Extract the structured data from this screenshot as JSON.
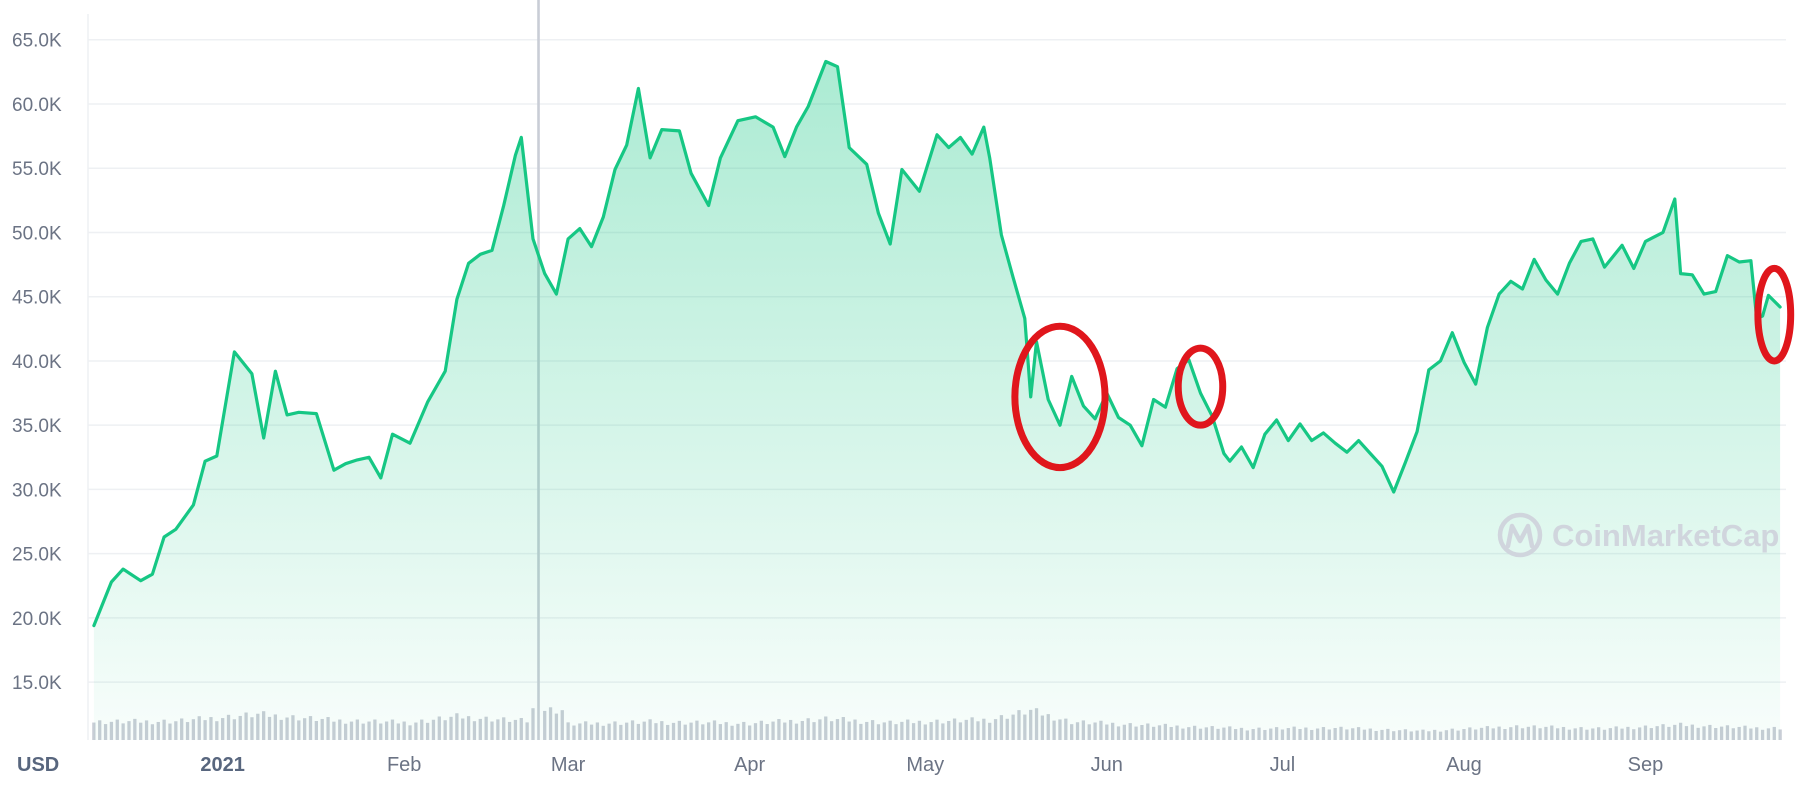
{
  "chart_data": {
    "type": "area",
    "currency_label": "USD",
    "watermark": "CoinMarketCap",
    "y_ticks": [
      "65.0K",
      "60.0K",
      "55.0K",
      "50.0K",
      "45.0K",
      "40.0K",
      "35.0K",
      "30.0K",
      "25.0K",
      "20.0K",
      "15.0K"
    ],
    "x_ticks": [
      {
        "label": "2021",
        "date": "2021-01-01",
        "bold": true
      },
      {
        "label": "Feb",
        "date": "2021-02-01",
        "bold": false
      },
      {
        "label": "Mar",
        "date": "2021-03-01",
        "bold": false
      },
      {
        "label": "Apr",
        "date": "2021-04-01",
        "bold": false
      },
      {
        "label": "May",
        "date": "2021-05-01",
        "bold": false
      },
      {
        "label": "Jun",
        "date": "2021-06-01",
        "bold": false
      },
      {
        "label": "Jul",
        "date": "2021-07-01",
        "bold": false
      },
      {
        "label": "Aug",
        "date": "2021-08-01",
        "bold": false
      },
      {
        "label": "Sep",
        "date": "2021-09-01",
        "bold": false
      }
    ],
    "ylim": [
      10500,
      67000
    ],
    "xlim": [
      "2020-12-09",
      "2021-09-25"
    ],
    "grid": true,
    "line_color": "#16c784",
    "fill_color": "#16c784",
    "volume_color": "#c9cdd6",
    "annotation_color": "#e0161c",
    "series": [
      {
        "type": "line",
        "x": [
          "2020-12-10",
          "2020-12-13",
          "2020-12-15",
          "2020-12-18",
          "2020-12-20",
          "2020-12-22",
          "2020-12-24",
          "2020-12-27",
          "2020-12-29",
          "2020-12-31",
          "2021-01-03",
          "2021-01-06",
          "2021-01-08",
          "2021-01-10",
          "2021-01-12",
          "2021-01-14",
          "2021-01-17",
          "2021-01-20",
          "2021-01-22",
          "2021-01-24",
          "2021-01-26",
          "2021-01-28",
          "2021-01-30",
          "2021-02-02",
          "2021-02-05",
          "2021-02-08",
          "2021-02-10",
          "2021-02-12",
          "2021-02-14",
          "2021-02-16",
          "2021-02-18",
          "2021-02-20",
          "2021-02-21",
          "2021-02-23",
          "2021-02-25",
          "2021-02-27",
          "2021-03-01",
          "2021-03-03",
          "2021-03-05",
          "2021-03-07",
          "2021-03-09",
          "2021-03-11",
          "2021-03-13",
          "2021-03-15",
          "2021-03-17",
          "2021-03-20",
          "2021-03-22",
          "2021-03-25",
          "2021-03-27",
          "2021-03-30",
          "2021-04-02",
          "2021-04-05",
          "2021-04-07",
          "2021-04-09",
          "2021-04-11",
          "2021-04-14",
          "2021-04-16",
          "2021-04-18",
          "2021-04-21",
          "2021-04-23",
          "2021-04-25",
          "2021-04-27",
          "2021-04-30",
          "2021-05-03",
          "2021-05-05",
          "2021-05-07",
          "2021-05-09",
          "2021-05-11",
          "2021-05-12",
          "2021-05-14",
          "2021-05-16",
          "2021-05-18",
          "2021-05-19",
          "2021-05-20",
          "2021-05-22",
          "2021-05-24",
          "2021-05-26",
          "2021-05-28",
          "2021-05-30",
          "2021-06-01",
          "2021-06-03",
          "2021-06-05",
          "2021-06-07",
          "2021-06-09",
          "2021-06-11",
          "2021-06-13",
          "2021-06-15",
          "2021-06-17",
          "2021-06-19",
          "2021-06-21",
          "2021-06-22",
          "2021-06-24",
          "2021-06-26",
          "2021-06-28",
          "2021-06-30",
          "2021-07-02",
          "2021-07-04",
          "2021-07-06",
          "2021-07-08",
          "2021-07-10",
          "2021-07-12",
          "2021-07-14",
          "2021-07-16",
          "2021-07-18",
          "2021-07-20",
          "2021-07-22",
          "2021-07-24",
          "2021-07-26",
          "2021-07-28",
          "2021-07-30",
          "2021-08-01",
          "2021-08-03",
          "2021-08-05",
          "2021-08-07",
          "2021-08-09",
          "2021-08-11",
          "2021-08-13",
          "2021-08-15",
          "2021-08-17",
          "2021-08-19",
          "2021-08-21",
          "2021-08-23",
          "2021-08-25",
          "2021-08-28",
          "2021-08-30",
          "2021-09-01",
          "2021-09-04",
          "2021-09-06",
          "2021-09-07",
          "2021-09-09",
          "2021-09-11",
          "2021-09-13",
          "2021-09-15",
          "2021-09-17",
          "2021-09-19",
          "2021-09-20",
          "2021-09-21",
          "2021-09-22",
          "2021-09-24"
        ],
        "y": [
          19400,
          22800,
          23800,
          22900,
          23400,
          26300,
          26900,
          28800,
          32200,
          32600,
          40700,
          39000,
          34000,
          39200,
          35800,
          36000,
          35900,
          31500,
          32000,
          32300,
          32500,
          30900,
          34300,
          33600,
          36800,
          39200,
          44800,
          47600,
          48300,
          48600,
          52100,
          56000,
          57400,
          49500,
          46800,
          45200,
          49500,
          50300,
          48900,
          51200,
          54900,
          56800,
          61200,
          55800,
          58000,
          57900,
          54600,
          52100,
          55800,
          58700,
          59000,
          58200,
          55900,
          58200,
          59800,
          63300,
          62900,
          56600,
          55300,
          51500,
          49100,
          54900,
          53200,
          57600,
          56600,
          57400,
          56100,
          58200,
          55800,
          49800,
          46500,
          43300,
          37200,
          41500,
          37000,
          35000,
          38800,
          36500,
          35500,
          37500,
          35600,
          35000,
          33400,
          37000,
          36400,
          39400,
          40100,
          37500,
          35700,
          32800,
          32200,
          33300,
          31700,
          34300,
          35400,
          33800,
          35100,
          33800,
          34400,
          33600,
          32900,
          33800,
          32800,
          31800,
          29800,
          32100,
          34500,
          39300,
          40000,
          42200,
          39900,
          38200,
          42600,
          45200,
          46200,
          45600,
          47900,
          46300,
          45200,
          47600,
          49300,
          49500,
          47300,
          49000,
          47200,
          49300,
          50000,
          52600,
          46800,
          46700,
          45200,
          45400,
          48200,
          47700,
          47800,
          43300,
          43500,
          45100,
          44200
        ]
      }
    ],
    "volume_ticks": {
      "dates": [
        "2020-12-10",
        "2020-12-24",
        "2021-01-07",
        "2021-01-20",
        "2021-02-02",
        "2021-02-10",
        "2021-02-22",
        "2021-02-24",
        "2021-03-01",
        "2021-03-15",
        "2021-04-01",
        "2021-04-14",
        "2021-04-25",
        "2021-05-12",
        "2021-05-19",
        "2021-05-26",
        "2021-06-10",
        "2021-06-25",
        "2021-07-10",
        "2021-07-25",
        "2021-08-10",
        "2021-08-25",
        "2021-09-07",
        "2021-09-20"
      ],
      "values": [
        2.4,
        2.5,
        3.4,
        2.6,
        2.3,
        3.1,
        2.5,
        11.5,
        2.1,
        2.4,
        2.2,
        2.8,
        2.3,
        2.7,
        3.9,
        2.4,
        1.9,
        1.5,
        1.6,
        1.2,
        1.8,
        1.5,
        2.0,
        1.6
      ]
    },
    "annotations": [
      {
        "type": "circle",
        "center_date": "2021-05-24",
        "center_value": 37200,
        "r_days": 7.7,
        "r_value": 5500
      },
      {
        "type": "circle",
        "center_date": "2021-06-17",
        "center_value": 38000,
        "r_days": 3.8,
        "r_value": 3000
      },
      {
        "type": "circle",
        "center_date": "2021-09-23",
        "center_value": 43600,
        "r_days": 2.8,
        "r_value": 3600
      }
    ]
  }
}
